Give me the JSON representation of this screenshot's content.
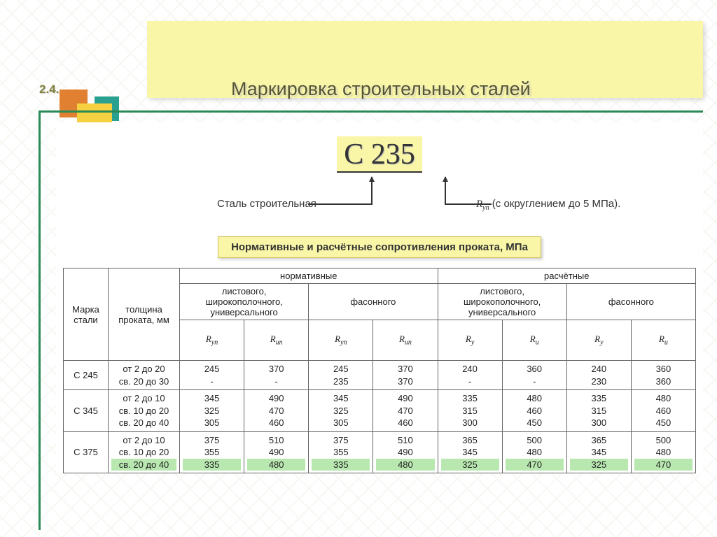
{
  "header": {
    "section_number": "2.4.",
    "title": "Маркировка строительных сталей"
  },
  "steel_code": "С 235",
  "annotations": {
    "left": "Сталь строительная",
    "right_symbol_html": "R<sub>уп</sub>",
    "right_text": " (с округлением до 5 МПа)."
  },
  "subheader": "Нормативные и расчётные сопротивления проката, МПа",
  "colors": {
    "band": "#f9f6a8",
    "accent_line": "#2a8a55",
    "highlight_row": "#b8e8b0",
    "square_orange": "#e08030",
    "square_yellow": "#f5d040",
    "square_teal": "#2aa090",
    "border": "#666666",
    "text": "#333333"
  },
  "table": {
    "head": {
      "mark": "Марка стали",
      "thickness": "толщина проката, мм",
      "group_norm": "нормативные",
      "group_calc": "расчётные",
      "sub_sheet": "листового, широкополочного, универсального",
      "sub_profile": "фасонного",
      "sym_Ryn": "R<sub>уп</sub>",
      "sym_Run": "R<sub>ип</sub>",
      "sym_Ry": "R<sub>у</sub>",
      "sym_Ru": "R<sub>и</sub>"
    },
    "rows": [
      {
        "mark": "С 245",
        "thickness": [
          "от 2 до 20",
          "св. 20 до 30"
        ],
        "cells": [
          [
            "245",
            "-"
          ],
          [
            "370",
            "-"
          ],
          [
            "245",
            "235"
          ],
          [
            "370",
            "370"
          ],
          [
            "240",
            "-"
          ],
          [
            "360",
            "-"
          ],
          [
            "240",
            "230"
          ],
          [
            "360",
            "360"
          ]
        ],
        "highlight_last": false
      },
      {
        "mark": "С 345",
        "thickness": [
          "от 2 до 10",
          "св. 10 до 20",
          "св. 20 до 40"
        ],
        "cells": [
          [
            "345",
            "325",
            "305"
          ],
          [
            "490",
            "470",
            "460"
          ],
          [
            "345",
            "325",
            "305"
          ],
          [
            "490",
            "470",
            "460"
          ],
          [
            "335",
            "315",
            "300"
          ],
          [
            "480",
            "460",
            "450"
          ],
          [
            "335",
            "315",
            "300"
          ],
          [
            "480",
            "460",
            "450"
          ]
        ],
        "highlight_last": false
      },
      {
        "mark": "С 375",
        "thickness": [
          "от 2 до 10",
          "св. 10 до 20",
          "св. 20 до 40"
        ],
        "cells": [
          [
            "375",
            "355",
            "335"
          ],
          [
            "510",
            "490",
            "480"
          ],
          [
            "375",
            "355",
            "335"
          ],
          [
            "510",
            "490",
            "480"
          ],
          [
            "365",
            "345",
            "325"
          ],
          [
            "500",
            "480",
            "470"
          ],
          [
            "365",
            "345",
            "325"
          ],
          [
            "500",
            "480",
            "470"
          ]
        ],
        "highlight_last": true
      }
    ]
  }
}
